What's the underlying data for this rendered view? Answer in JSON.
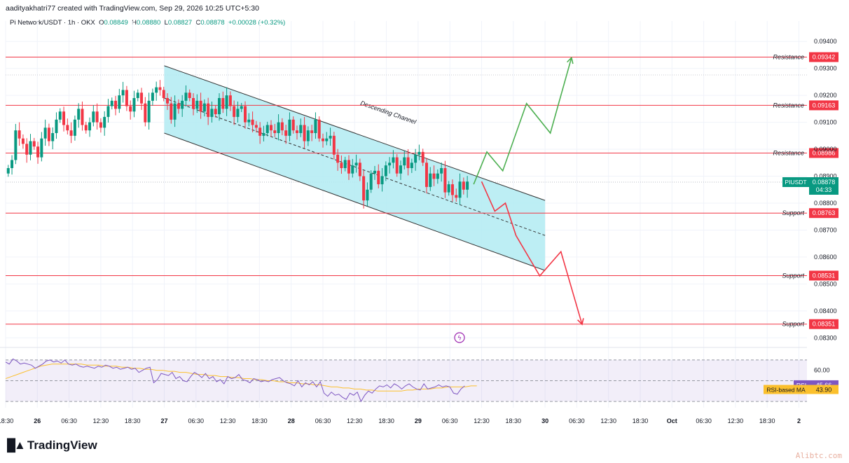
{
  "header": {
    "credit": "aadityakhatri77 created with TradingView.com, Sep 29, 2026 10:25 UTC+5:30"
  },
  "legend": {
    "symbol": "Pi Network/USDT · 1h · OKX",
    "o_label": "O",
    "o": "0.08849",
    "h_label": "H",
    "h": "0.08880",
    "l_label": "L",
    "l": "0.08827",
    "c_label": "C",
    "c": "0.08878",
    "change": "+0.00028 (+0.32%)"
  },
  "brand": {
    "name": "TradingView",
    "watermark": "Alibtc.com"
  },
  "colors": {
    "up": "#089981",
    "down": "#f23645",
    "channel": "#b2ebf2",
    "level": "#f23645",
    "rsi": "#7e57c2",
    "rsi_ma": "#fbc02d",
    "bull_path": "#4caf50",
    "bear_path": "#f23645"
  },
  "chart_data": [
    {
      "type": "candlestick",
      "ylim": [
        0.0828,
        0.0945
      ],
      "price_ticks": [
        "0.09400",
        "0.09300",
        "0.09200",
        "0.09100",
        "0.09000",
        "0.08900",
        "0.08800",
        "0.08700",
        "0.08600",
        "0.08500",
        "0.08400",
        "0.08300"
      ],
      "price_tick_values": [
        0.094,
        0.093,
        0.092,
        0.091,
        0.09,
        0.089,
        0.088,
        0.087,
        0.086,
        0.085,
        0.084,
        0.083
      ],
      "time_labels": [
        "18:30",
        "26",
        "06:30",
        "12:30",
        "18:30",
        "27",
        "06:30",
        "12:30",
        "18:30",
        "28",
        "06:30",
        "12:30",
        "18:30",
        "29",
        "06:30",
        "12:30",
        "18:30",
        "30",
        "06:30",
        "12:30",
        "18:30",
        "Oct",
        "06:30",
        "12:30",
        "18:30",
        "2"
      ],
      "time_label_hours": [
        0,
        6,
        12,
        18,
        24,
        30,
        36,
        42,
        48,
        54,
        60,
        66,
        72,
        78,
        84,
        90,
        96,
        102,
        108,
        114,
        120,
        126,
        132,
        138,
        144,
        150
      ],
      "current_price": {
        "label": "PIUSDT",
        "value": "0.08878",
        "countdown": "04:33"
      },
      "levels": [
        {
          "name": "Resistance",
          "value": "0.09342"
        },
        {
          "name": "Resistance",
          "value": "0.09163"
        },
        {
          "name": "Resistance",
          "value": "0.08986"
        },
        {
          "name": "Support",
          "value": "0.08763"
        },
        {
          "name": "Support",
          "value": "0.08531"
        },
        {
          "name": "Support",
          "value": "0.08351"
        }
      ],
      "channel": {
        "label": "Descending Channel",
        "upper": [
          [
            30,
            0.0931
          ],
          [
            102,
            0.0881
          ]
        ],
        "lower": [
          [
            30,
            0.0906
          ],
          [
            102,
            0.0855
          ]
        ],
        "mid": [
          [
            30,
            0.0919
          ],
          [
            102,
            0.0868
          ]
        ]
      },
      "scenario_bull": [
        [
          88.5,
          0.0887
        ],
        [
          91,
          0.0899
        ],
        [
          94,
          0.0892
        ],
        [
          98.5,
          0.0917
        ],
        [
          103,
          0.0906
        ],
        [
          107,
          0.0934
        ]
      ],
      "scenario_bear": [
        [
          90,
          0.0888
        ],
        [
          92.5,
          0.0877
        ],
        [
          94.5,
          0.088
        ],
        [
          96.5,
          0.0868
        ],
        [
          101,
          0.0853
        ],
        [
          105,
          0.0862
        ],
        [
          109,
          0.0835
        ]
      ],
      "closes": [
        0.0893,
        0.0896,
        0.0907,
        0.0904,
        0.0902,
        0.0898,
        0.0903,
        0.0901,
        0.0897,
        0.0904,
        0.0908,
        0.0903,
        0.0906,
        0.0911,
        0.0914,
        0.0909,
        0.0907,
        0.0905,
        0.0911,
        0.0915,
        0.0909,
        0.0907,
        0.091,
        0.0914,
        0.091,
        0.0908,
        0.0912,
        0.0916,
        0.0918,
        0.0915,
        0.092,
        0.0922,
        0.0916,
        0.0914,
        0.0919,
        0.0921,
        0.0917,
        0.091,
        0.0918,
        0.0921,
        0.0923,
        0.0922,
        0.0919,
        0.0917,
        0.0911,
        0.0917,
        0.0915,
        0.0918,
        0.0921,
        0.0919,
        0.0915,
        0.0918,
        0.0914,
        0.0917,
        0.0912,
        0.0915,
        0.0913,
        0.0919,
        0.0915,
        0.092,
        0.0916,
        0.0912,
        0.0915,
        0.0916,
        0.091,
        0.0911,
        0.0909,
        0.0908,
        0.0905,
        0.0906,
        0.0909,
        0.0907,
        0.0906,
        0.091,
        0.0907,
        0.0905,
        0.0911,
        0.0907,
        0.0906,
        0.0909,
        0.0903,
        0.0907,
        0.0906,
        0.0911,
        0.0904,
        0.0903,
        0.0904,
        0.0905,
        0.0898,
        0.0895,
        0.0893,
        0.0896,
        0.0891,
        0.0894,
        0.0895,
        0.089,
        0.0881,
        0.0885,
        0.0891,
        0.0892,
        0.0887,
        0.089,
        0.0894,
        0.0895,
        0.0897,
        0.0891,
        0.0894,
        0.0897,
        0.0893,
        0.0895,
        0.0898,
        0.0899,
        0.0895,
        0.0886,
        0.0891,
        0.0889,
        0.0891,
        0.0893,
        0.0884,
        0.0887,
        0.0883,
        0.0882,
        0.0888,
        0.0885,
        0.0888
      ]
    },
    {
      "type": "line",
      "name": "RSI",
      "ylim": [
        24,
        76
      ],
      "tick_label": "60.00",
      "tick_value": 60,
      "guides": [
        70,
        50,
        30
      ],
      "rsi_label": "RSI",
      "rsi_value": "45.66",
      "ma_label": "RSI-based MA",
      "ma_value": "43.90",
      "rsi": [
        68,
        66,
        71,
        69,
        66,
        67,
        66,
        65,
        62,
        64,
        66,
        69,
        70,
        68,
        69,
        67,
        70,
        66,
        65,
        66,
        64,
        63,
        64,
        63,
        62,
        64,
        63,
        65,
        64,
        62,
        63,
        61,
        62,
        63,
        61,
        62,
        58,
        60,
        62,
        63,
        48,
        51,
        57,
        56,
        55,
        58,
        52,
        54,
        50,
        49,
        54,
        58,
        56,
        53,
        57,
        52,
        54,
        49,
        51,
        47,
        54,
        52,
        53,
        56,
        51,
        50,
        48,
        52,
        51,
        49,
        50,
        49,
        51,
        52,
        53,
        50,
        48,
        47,
        45,
        50,
        44,
        48,
        46,
        49,
        44,
        49,
        38,
        35,
        39,
        36,
        37,
        34,
        32,
        38,
        36,
        39,
        30,
        36,
        40,
        38,
        42,
        45,
        44,
        46,
        43,
        47,
        45,
        42,
        45,
        47,
        44,
        42,
        41,
        47,
        42,
        43,
        44,
        46,
        44,
        45,
        44,
        38,
        37,
        42,
        45
      ],
      "ma": [
        52,
        54,
        56,
        58,
        60,
        62,
        64,
        65,
        66,
        66,
        66,
        66,
        66,
        66,
        65,
        65,
        65,
        64,
        64,
        64,
        63,
        63,
        62,
        62,
        61,
        61,
        60,
        60,
        59,
        59,
        58,
        58,
        57,
        56,
        56,
        55,
        55,
        54,
        54,
        53,
        53,
        52,
        52,
        51,
        51,
        50,
        50,
        49,
        49,
        48,
        48,
        47,
        47,
        46,
        46,
        45,
        44,
        44,
        43,
        43,
        42,
        42,
        41,
        41,
        40,
        40,
        40,
        40,
        40,
        41,
        41,
        42,
        42,
        42,
        43,
        43,
        44,
        44,
        44,
        44,
        45,
        45
      ]
    }
  ]
}
